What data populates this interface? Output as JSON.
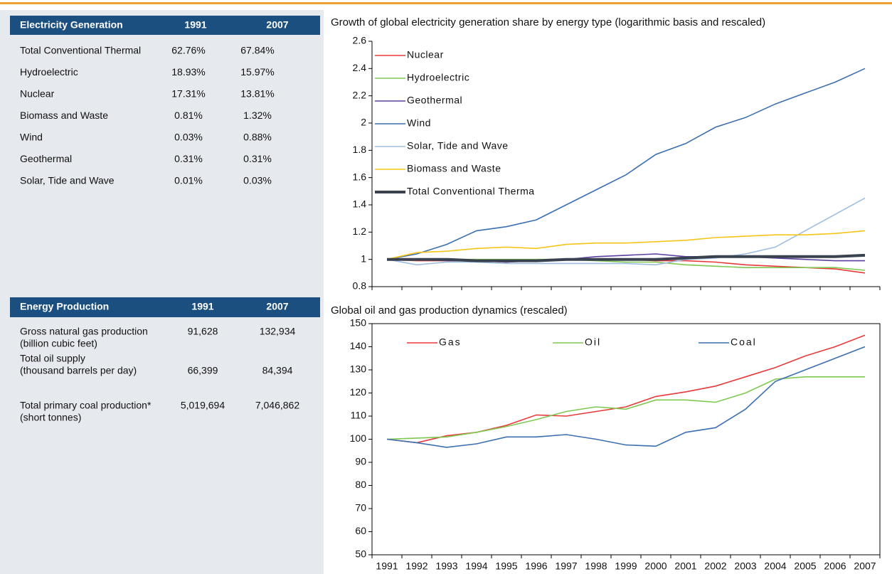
{
  "tables": [
    {
      "header": [
        "Electricity Generation",
        "1991",
        "2007"
      ],
      "rows": [
        [
          "Total Conventional Thermal",
          "62.76%",
          "67.84%"
        ],
        [
          "Hydroelectric",
          "18.93%",
          "15.97%"
        ],
        [
          "Nuclear",
          "17.31%",
          "13.81%"
        ],
        [
          "Biomass and Waste",
          "0.81%",
          "1.32%"
        ],
        [
          "Wind",
          "0.03%",
          "0.88%"
        ],
        [
          "Geothermal",
          "0.31%",
          "0.31%"
        ],
        [
          "Solar, Tide and Wave",
          "0.01%",
          "0.03%"
        ]
      ]
    },
    {
      "header": [
        "Energy Production",
        "1991",
        "2007"
      ],
      "rows": [
        [
          "Gross natural gas production",
          "(billion cubic feet)",
          "91,628",
          "132,934"
        ],
        [
          "Total oil supply",
          "(thousand barrels per day)",
          "66,399",
          "84,394"
        ],
        [
          "Total primary coal production*",
          "(short tonnes)",
          "5,019,694",
          "7,046,862"
        ]
      ]
    }
  ],
  "chart_data": [
    {
      "type": "line",
      "title": "Growth of global electricity generation share by energy type (logarithmic basis and rescaled)",
      "ylim": [
        0.8,
        2.6
      ],
      "yticks": [
        0.8,
        1,
        1.2,
        1.4,
        1.6,
        1.8,
        2,
        2.2,
        2.4,
        2.6
      ],
      "legend": "upper left",
      "legend_layout": "vertical",
      "series": [
        {
          "name": "Nuclear",
          "color": "#e8393a",
          "values": [
            1,
            0.99,
            0.99,
            0.99,
            0.98,
            0.99,
            1,
            1,
            1,
            0.99,
            0.99,
            0.98,
            0.96,
            0.95,
            0.94,
            0.93,
            0.9
          ]
        },
        {
          "name": "Hydroelectric",
          "color": "#7ec850",
          "values": [
            1,
            1,
            1,
            1,
            1,
            1,
            1,
            0.99,
            0.98,
            0.98,
            0.96,
            0.95,
            0.94,
            0.94,
            0.94,
            0.94,
            0.92
          ]
        },
        {
          "name": "Geothermal",
          "color": "#5a3fa0",
          "values": [
            1,
            1,
            0.99,
            0.99,
            0.98,
            0.99,
            1,
            1.02,
            1.03,
            1.04,
            1.02,
            1.02,
            1.02,
            1.01,
            1,
            0.99,
            0.99
          ]
        },
        {
          "name": "Wind",
          "color": "#3c6fb0",
          "values": [
            1,
            1.04,
            1.11,
            1.21,
            1.24,
            1.29,
            1.4,
            1.51,
            1.62,
            1.77,
            1.85,
            1.97,
            2.04,
            2.14,
            2.22,
            2.3,
            2.4
          ]
        },
        {
          "name": "Solar, Tide and Wave",
          "color": "#9dbde0",
          "values": [
            1,
            0.96,
            0.98,
            0.98,
            0.97,
            0.97,
            0.97,
            0.97,
            0.97,
            0.96,
            1,
            1.01,
            1.04,
            1.09,
            1.21,
            1.33,
            1.45
          ]
        },
        {
          "name": "Biomass and Waste",
          "color": "#f5c518",
          "values": [
            1,
            1.05,
            1.06,
            1.08,
            1.09,
            1.08,
            1.11,
            1.12,
            1.12,
            1.13,
            1.14,
            1.16,
            1.17,
            1.18,
            1.18,
            1.19,
            1.21
          ]
        },
        {
          "name": "Total Conventional Therma",
          "color": "#3a4250",
          "values": [
            1,
            1,
            1,
            0.99,
            0.99,
            0.99,
            1,
            1,
            1,
            1,
            1.01,
            1.02,
            1.02,
            1.02,
            1.02,
            1.02,
            1.03
          ]
        }
      ]
    },
    {
      "type": "line",
      "title": "Global oil and gas production dynamics (rescaled)",
      "categories": [
        "1991",
        "1992",
        "1993",
        "1994",
        "1995",
        "1996",
        "1997",
        "1998",
        "1999",
        "2000",
        "2001",
        "2002",
        "2003",
        "2004",
        "2005",
        "2006",
        "2007"
      ],
      "ylim": [
        50,
        150
      ],
      "yticks": [
        50,
        60,
        70,
        80,
        90,
        100,
        110,
        120,
        130,
        140,
        150
      ],
      "legend": "upper left",
      "legend_layout": "horizontal",
      "series": [
        {
          "name": "Gas",
          "color": "#e8393a",
          "values": [
            100,
            98.5,
            101.5,
            103,
            106,
            110.5,
            110,
            112,
            114,
            118.5,
            120.5,
            123,
            127,
            131,
            136,
            140,
            145
          ]
        },
        {
          "name": "Oil",
          "color": "#7ec850",
          "values": [
            100,
            100.5,
            101,
            103,
            105.5,
            108.5,
            112,
            114,
            113,
            117,
            117,
            116,
            120,
            126,
            127,
            127,
            127
          ]
        },
        {
          "name": "Coal",
          "color": "#3c6fb0",
          "values": [
            100,
            98.5,
            96.5,
            98,
            101,
            101,
            102,
            100,
            97.5,
            97,
            103,
            105,
            113,
            125,
            130,
            135,
            140
          ]
        }
      ]
    }
  ]
}
